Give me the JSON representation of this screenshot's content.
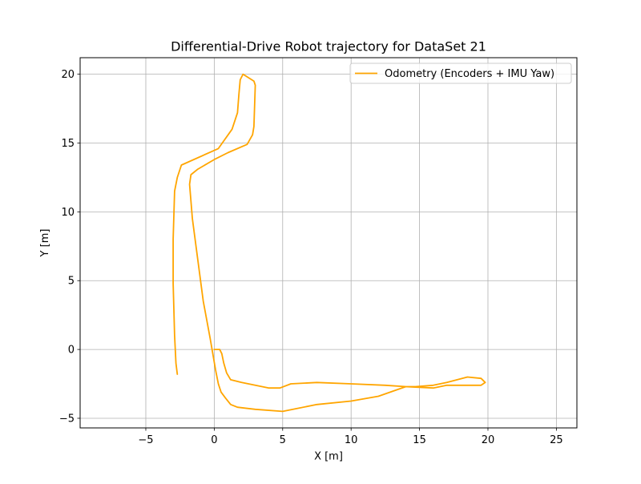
{
  "chart_data": {
    "type": "line",
    "title": "Differential-Drive Robot trajectory for DataSet 21",
    "xlabel": "X [m]",
    "ylabel": "Y [m]",
    "xlim": [
      -9.8,
      26.5
    ],
    "ylim": [
      -5.7,
      21.2
    ],
    "xticks": [
      -5,
      0,
      5,
      10,
      15,
      20,
      25
    ],
    "yticks": [
      -5,
      0,
      5,
      10,
      15,
      20
    ],
    "xtick_labels": [
      "−5",
      "0",
      "5",
      "10",
      "15",
      "20",
      "25"
    ],
    "ytick_labels": [
      "−5",
      "0",
      "5",
      "10",
      "15",
      "20"
    ],
    "grid": true,
    "legend_position": "upper right",
    "series": [
      {
        "name": "Odometry (Encoders + IMU Yaw)",
        "color": "#ffa500",
        "x": [
          0.0,
          0.4,
          0.55,
          0.7,
          0.9,
          1.2,
          2.0,
          3.0,
          4.0,
          4.8,
          5.6,
          7.5,
          10.0,
          12.5,
          14.0,
          14.7,
          16.0,
          17.0,
          18.5,
          19.5,
          19.8,
          19.5,
          18.5,
          17.0,
          16.0,
          14.0,
          12.0,
          10.0,
          7.5,
          5.0,
          3.0,
          1.7,
          1.2,
          0.8,
          0.5,
          0.3,
          0.1,
          -0.3,
          -0.8,
          -1.2,
          -1.6,
          -1.8,
          -1.7,
          -1.2,
          0.0,
          1.0,
          2.4,
          2.8,
          2.9,
          3.0,
          2.9,
          2.1,
          1.9,
          1.8,
          1.7,
          1.3,
          0.3,
          -2.4,
          -2.7,
          -2.9,
          -3.0,
          -3.0,
          -2.9,
          -2.8,
          -2.7
        ],
        "y": [
          0.0,
          0.0,
          -0.3,
          -1.0,
          -1.7,
          -2.2,
          -2.4,
          -2.6,
          -2.8,
          -2.8,
          -2.5,
          -2.4,
          -2.5,
          -2.6,
          -2.7,
          -2.7,
          -2.6,
          -2.4,
          -2.0,
          -2.1,
          -2.4,
          -2.6,
          -2.6,
          -2.6,
          -2.8,
          -2.7,
          -3.4,
          -3.75,
          -4.0,
          -4.5,
          -4.35,
          -4.2,
          -4.0,
          -3.5,
          -3.1,
          -2.5,
          -1.5,
          0.8,
          3.5,
          6.5,
          9.5,
          12.0,
          12.7,
          13.1,
          13.8,
          14.3,
          14.9,
          15.6,
          16.2,
          19.2,
          19.5,
          20.0,
          19.6,
          18.5,
          17.2,
          16.0,
          14.6,
          13.4,
          12.5,
          11.5,
          8.0,
          4.8,
          1.0,
          -1.0,
          -1.8
        ]
      }
    ]
  }
}
